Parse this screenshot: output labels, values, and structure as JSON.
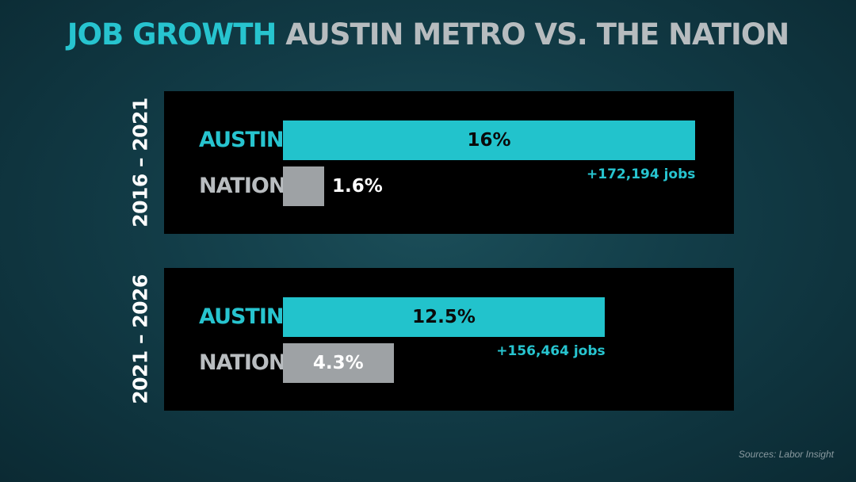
{
  "title": {
    "highlight": "JOB GROWTH",
    "rest": "AUSTIN METRO VS. THE NATION"
  },
  "source": "Sources: Labor Insight",
  "colors": {
    "austin": "#22c3cc",
    "nation": "#9ea2a5",
    "panel": "#000000"
  },
  "chart_data": [
    {
      "type": "bar",
      "orientation": "horizontal",
      "period": "2016 – 2021",
      "categories": [
        "AUSTIN",
        "NATION"
      ],
      "values": [
        16,
        1.6
      ],
      "value_labels": [
        "16%",
        "1.6%"
      ],
      "jobs_label": "+172,194 jobs",
      "xlim": [
        0,
        16
      ]
    },
    {
      "type": "bar",
      "orientation": "horizontal",
      "period": "2021 – 2026",
      "categories": [
        "AUSTIN",
        "NATION"
      ],
      "values": [
        12.5,
        4.3
      ],
      "value_labels": [
        "12.5%",
        "4.3%"
      ],
      "jobs_label": "+156,464 jobs",
      "xlim": [
        0,
        16
      ]
    }
  ]
}
